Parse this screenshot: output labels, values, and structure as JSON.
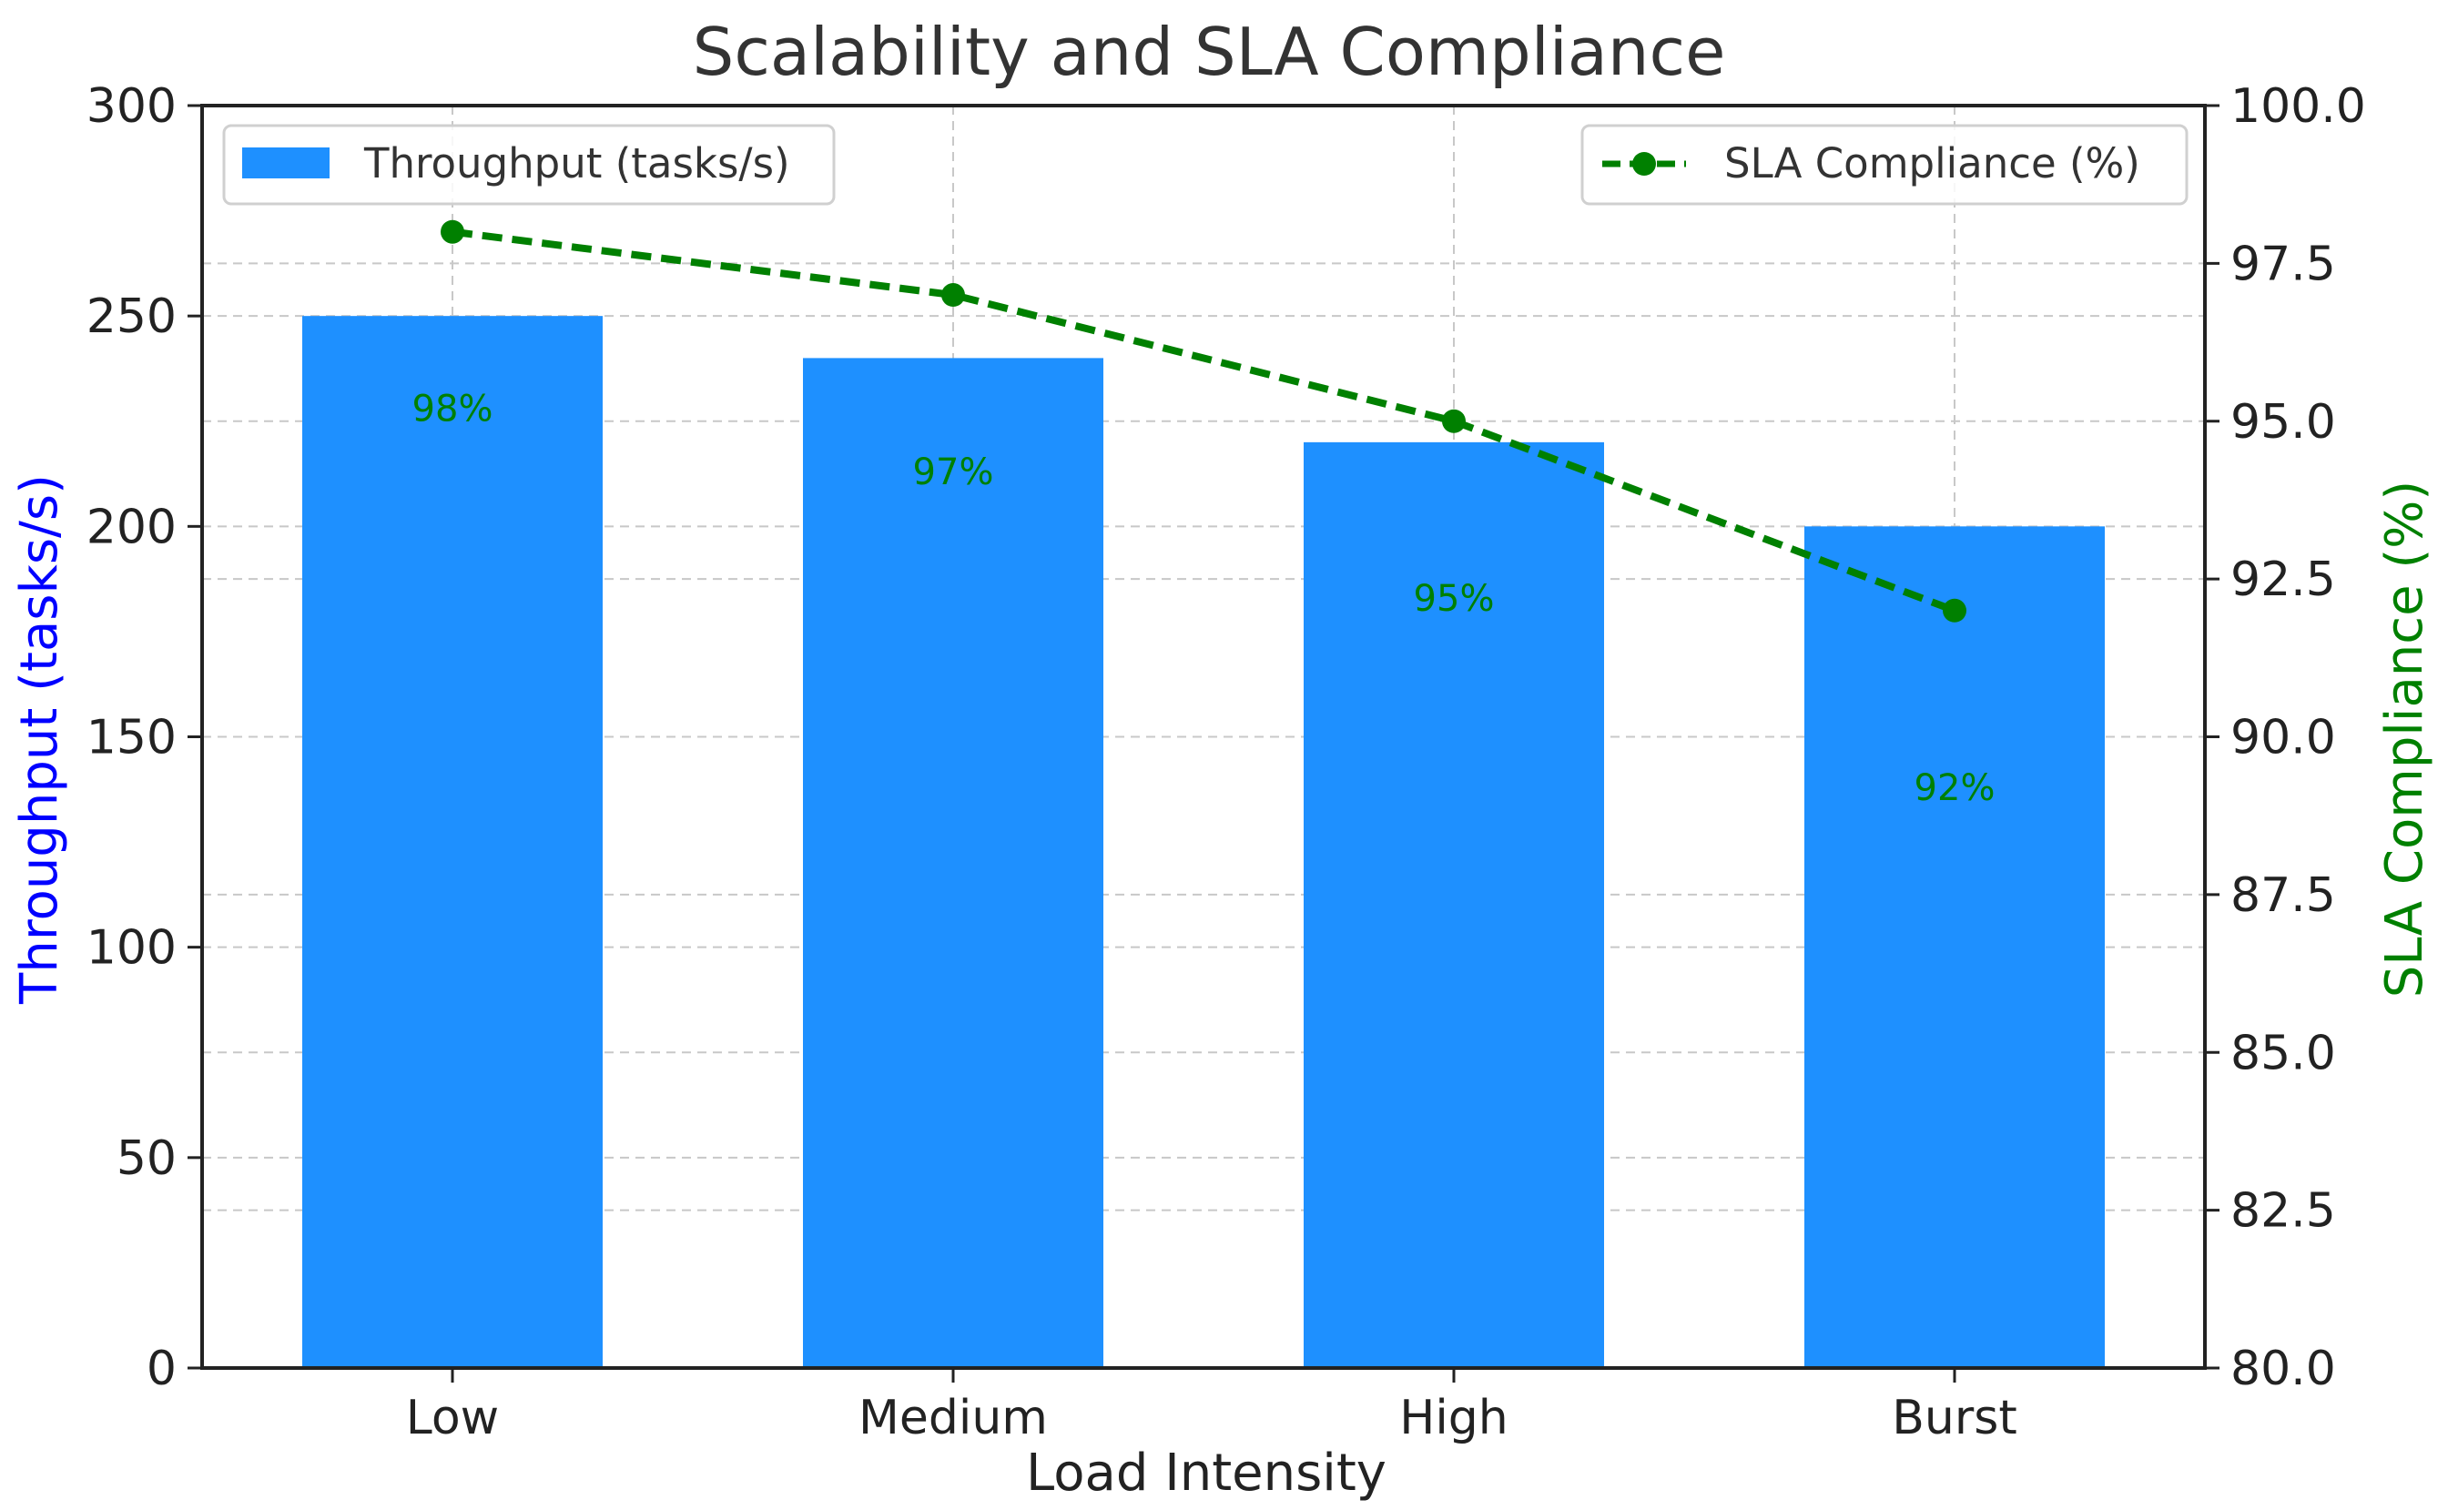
{
  "chart_data": {
    "type": "bar",
    "title": "Scalability and SLA Compliance",
    "xlabel": "Load Intensity",
    "categories": [
      "Low",
      "Medium",
      "High",
      "Burst"
    ],
    "bar_series": {
      "name": "Throughput (tasks/s)",
      "values": [
        250,
        240,
        220,
        200
      ],
      "color": "#1E90FF"
    },
    "line_series": {
      "name": "SLA Compliance (%)",
      "values": [
        98,
        97,
        95,
        92
      ],
      "color": "#008000",
      "style": "dashed",
      "marker": "circle"
    },
    "data_labels": [
      "98%",
      "97%",
      "95%",
      "92%"
    ],
    "y_left": {
      "label": "Throughput (tasks/s)",
      "label_color": "#0000FF",
      "range": [
        0,
        300
      ],
      "ticks": [
        0,
        50,
        100,
        150,
        200,
        250,
        300
      ]
    },
    "y_right": {
      "label": "SLA Compliance (%)",
      "label_color": "#008000",
      "range": [
        80,
        100
      ],
      "ticks": [
        "80.0",
        "82.5",
        "85.0",
        "87.5",
        "90.0",
        "92.5",
        "95.0",
        "97.5",
        "100.0"
      ]
    },
    "grid": true,
    "legend_bar_position": "top-left",
    "legend_line_position": "top-right"
  }
}
